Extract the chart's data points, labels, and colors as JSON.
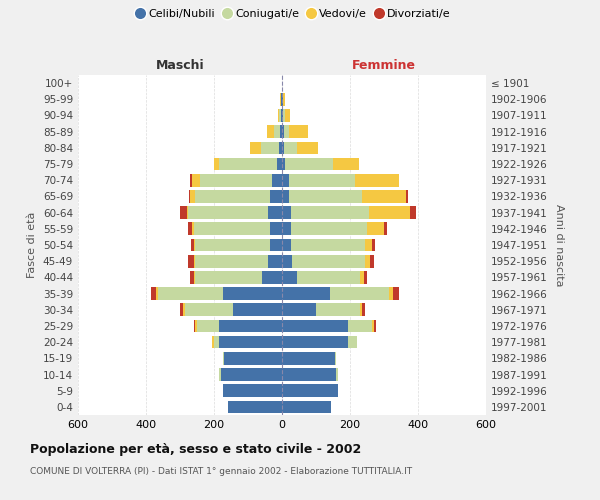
{
  "age_groups": [
    "0-4",
    "5-9",
    "10-14",
    "15-19",
    "20-24",
    "25-29",
    "30-34",
    "35-39",
    "40-44",
    "45-49",
    "50-54",
    "55-59",
    "60-64",
    "65-69",
    "70-74",
    "75-79",
    "80-84",
    "85-89",
    "90-94",
    "95-99",
    "100+"
  ],
  "birth_years": [
    "1997-2001",
    "1992-1996",
    "1987-1991",
    "1982-1986",
    "1977-1981",
    "1972-1976",
    "1967-1971",
    "1962-1966",
    "1957-1961",
    "1952-1956",
    "1947-1951",
    "1942-1946",
    "1937-1941",
    "1932-1936",
    "1927-1931",
    "1922-1926",
    "1917-1921",
    "1912-1916",
    "1907-1911",
    "1902-1906",
    "≤ 1901"
  ],
  "maschi": {
    "celibi": [
      160,
      175,
      180,
      170,
      185,
      185,
      145,
      175,
      60,
      40,
      35,
      35,
      40,
      35,
      30,
      15,
      8,
      5,
      3,
      2,
      0
    ],
    "coniugati": [
      0,
      0,
      5,
      5,
      15,
      65,
      140,
      190,
      195,
      215,
      220,
      225,
      235,
      220,
      210,
      170,
      55,
      20,
      5,
      2,
      0
    ],
    "vedovi": [
      0,
      0,
      0,
      0,
      5,
      5,
      5,
      5,
      5,
      5,
      5,
      5,
      5,
      15,
      25,
      15,
      30,
      20,
      5,
      2,
      0
    ],
    "divorziati": [
      0,
      0,
      0,
      0,
      0,
      5,
      10,
      15,
      10,
      15,
      8,
      10,
      20,
      5,
      5,
      0,
      0,
      0,
      0,
      0,
      0
    ]
  },
  "femmine": {
    "nubili": [
      145,
      165,
      160,
      155,
      195,
      195,
      100,
      140,
      45,
      30,
      25,
      25,
      25,
      20,
      20,
      10,
      5,
      5,
      3,
      2,
      0
    ],
    "coniugate": [
      0,
      0,
      5,
      5,
      25,
      70,
      130,
      175,
      185,
      215,
      220,
      225,
      230,
      215,
      195,
      140,
      40,
      15,
      5,
      2,
      0
    ],
    "vedove": [
      0,
      0,
      0,
      0,
      0,
      5,
      5,
      10,
      10,
      15,
      20,
      50,
      120,
      130,
      130,
      75,
      60,
      55,
      15,
      5,
      0
    ],
    "divorziate": [
      0,
      0,
      0,
      0,
      0,
      5,
      10,
      20,
      10,
      10,
      8,
      10,
      20,
      5,
      0,
      0,
      0,
      0,
      0,
      0,
      0
    ]
  },
  "colors": {
    "celibi_nubili": "#4472a8",
    "coniugati_e": "#c5d9a0",
    "vedovi_e": "#f5c842",
    "divorziati_e": "#c0392b"
  },
  "title": "Popolazione per età, sesso e stato civile - 2002",
  "subtitle": "COMUNE DI VOLTERRA (PI) - Dati ISTAT 1° gennaio 2002 - Elaborazione TUTTITALIA.IT",
  "xlabel_left": "Maschi",
  "xlabel_right": "Femmine",
  "ylabel_left": "Fasce di età",
  "ylabel_right": "Anni di nascita",
  "xlim": 600,
  "bg_color": "#f0f0f0",
  "bar_bg": "#ffffff",
  "grid_color": "#cccccc"
}
